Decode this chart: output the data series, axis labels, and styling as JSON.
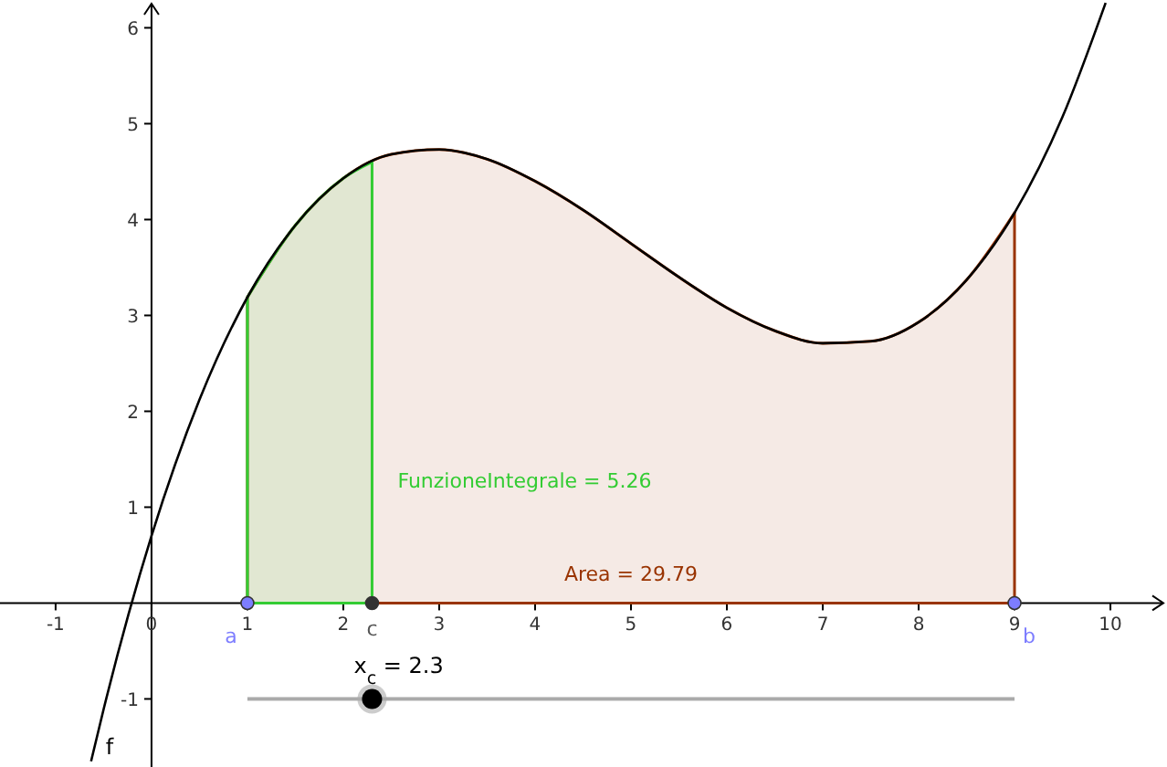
{
  "chart_data": {
    "type": "line",
    "xlim": [
      -1.58,
      10.59
    ],
    "ylim": [
      -1.71,
      6.29
    ],
    "xticks": [
      -1,
      0,
      1,
      2,
      3,
      4,
      5,
      6,
      7,
      8,
      9,
      10
    ],
    "yticks": [
      -1,
      1,
      2,
      3,
      4,
      5,
      6
    ],
    "grid": false,
    "series": [
      {
        "type": "area",
        "color": "#993300",
        "x": [
          1,
          1.5,
          2,
          2.5,
          3,
          3.5,
          4,
          4.5,
          5,
          5.5,
          6,
          6.5,
          7,
          7.5,
          8,
          8.5,
          9
        ],
        "values": [
          3.19,
          3.94,
          4.43,
          4.68,
          4.73,
          4.63,
          4.4,
          4.1,
          3.75,
          3.4,
          3.08,
          2.84,
          2.71,
          2.73,
          2.93,
          3.37,
          4.07
        ]
      },
      {
        "type": "area",
        "color": "#33cc33",
        "x": [
          1,
          1.5,
          2,
          2.3
        ],
        "values": [
          3.19,
          3.94,
          4.43,
          4.6
        ]
      },
      {
        "name": "f",
        "color": "#000000",
        "x": [
          -0.63,
          -0.5,
          0,
          0.5,
          1,
          1.5,
          2,
          2.5,
          3,
          3.5,
          4,
          4.5,
          5,
          5.5,
          6,
          6.5,
          7,
          7.5,
          8,
          8.5,
          9,
          9.5,
          9.95
        ],
        "values": [
          -1.65,
          -1.11,
          0.7,
          2.12,
          3.19,
          3.94,
          4.43,
          4.68,
          4.73,
          4.63,
          4.4,
          4.1,
          3.75,
          3.4,
          3.08,
          2.84,
          2.71,
          2.73,
          2.93,
          3.37,
          4.07,
          5.07,
          6.26
        ]
      },
      {
        "type": "scatter",
        "x": [
          1,
          2.3,
          9
        ],
        "values": [
          0,
          0,
          0
        ],
        "colors": [
          "#7d7dff",
          "#333333",
          "#7d7dff"
        ]
      }
    ],
    "annotations": [
      {
        "text": "a",
        "x": 1,
        "y": 0
      },
      {
        "text": "c",
        "x": 2.3,
        "y": 0
      },
      {
        "text": "b",
        "x": 9,
        "y": 0
      },
      {
        "text": "FunzioneIntegrale = 5.26",
        "x": 2.3,
        "y": 1.2
      },
      "Area = 29.79",
      {
        "text": "x$_{c}$ = 2.3",
        "x": 2.3,
        "y": -1
      }
    ]
  }
}
